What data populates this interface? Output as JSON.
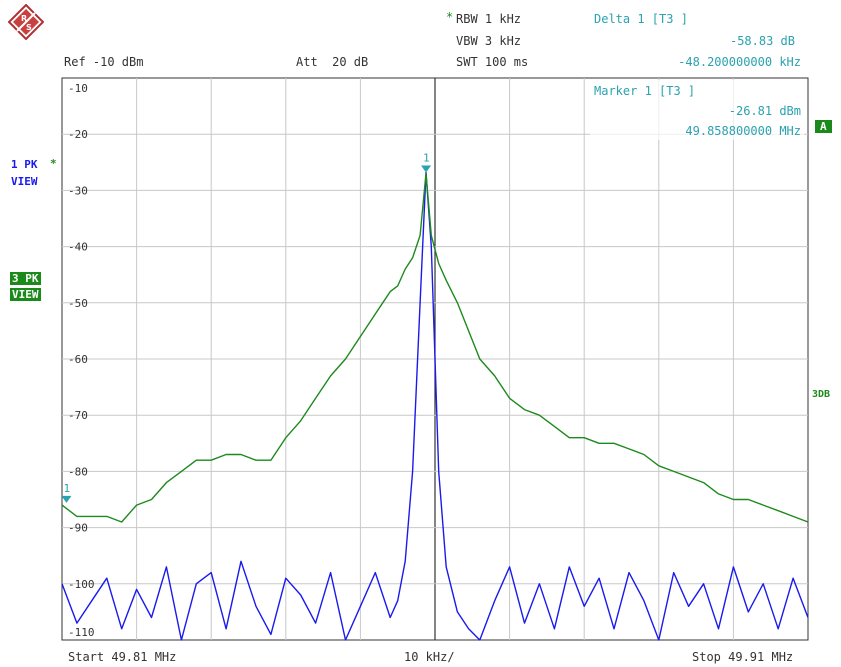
{
  "header": {
    "rbw_star": "*",
    "rbw": "RBW 1 kHz",
    "vbw": "VBW 3 kHz",
    "swt": "SWT 100 ms",
    "ref": "Ref -10 dBm",
    "att": "Att  20 dB",
    "delta_title": "Delta 1 [T3 ]",
    "delta_level": "-58.83 dB",
    "delta_freq": "-48.200000000 kHz"
  },
  "marker_box": {
    "title": "Marker 1 [T3 ]",
    "level": "-26.81 dBm",
    "freq": "49.858800000 MHz"
  },
  "side": {
    "trace1_label": "1 PK",
    "trace1_star": "*",
    "trace1_view": "VIEW",
    "trace3_label": "3 PK",
    "trace3_view": "VIEW",
    "badge_a": "A",
    "label_3db": "3DB"
  },
  "footer": {
    "start": "Start 49.81 MHz",
    "div": "10 kHz/",
    "stop": "Stop 49.91 MHz"
  },
  "colors": {
    "trace1": "#1a1aee",
    "trace3": "#1d8a1d",
    "marker": "#2aa2b0",
    "grid": "#c8c8c8"
  },
  "chart_data": {
    "type": "line",
    "xlabel_start": "Start 49.81 MHz",
    "xlabel_stop": "Stop 49.91 MHz",
    "x_div": "10 kHz/",
    "xlim": [
      49.81,
      49.91
    ],
    "ylim": [
      -110,
      -10
    ],
    "y_ticks": [
      -10,
      -20,
      -30,
      -40,
      -50,
      -60,
      -70,
      -80,
      -90,
      -100,
      -110
    ],
    "series": [
      {
        "name": "1 PK VIEW",
        "x": [
          49.81,
          49.812,
          49.814,
          49.816,
          49.818,
          49.82,
          49.822,
          49.824,
          49.826,
          49.828,
          49.83,
          49.832,
          49.834,
          49.836,
          49.838,
          49.84,
          49.842,
          49.844,
          49.846,
          49.848,
          49.85,
          49.852,
          49.854,
          49.855,
          49.856,
          49.857,
          49.858,
          49.8588,
          49.8595,
          49.8605,
          49.8615,
          49.863,
          49.8645,
          49.866,
          49.868,
          49.87,
          49.872,
          49.874,
          49.876,
          49.878,
          49.88,
          49.882,
          49.884,
          49.886,
          49.888,
          49.89,
          49.892,
          49.894,
          49.896,
          49.898,
          49.9,
          49.902,
          49.904,
          49.906,
          49.908,
          49.91
        ],
        "y": [
          -100,
          -107,
          -103,
          -99,
          -108,
          -101,
          -106,
          -97,
          -110,
          -100,
          -98,
          -108,
          -96,
          -104,
          -109,
          -99,
          -102,
          -107,
          -98,
          -110,
          -104,
          -98,
          -106,
          -103,
          -96,
          -80,
          -50,
          -26.8,
          -40,
          -80,
          -97,
          -105,
          -108,
          -110,
          -103,
          -97,
          -107,
          -100,
          -108,
          -97,
          -104,
          -99,
          -108,
          -98,
          -103,
          -110,
          -98,
          -104,
          -100,
          -108,
          -97,
          -105,
          -100,
          -108,
          -99,
          -106
        ]
      },
      {
        "name": "3 PK VIEW",
        "x": [
          49.81,
          49.812,
          49.814,
          49.816,
          49.818,
          49.82,
          49.822,
          49.824,
          49.826,
          49.828,
          49.83,
          49.832,
          49.834,
          49.836,
          49.838,
          49.84,
          49.842,
          49.844,
          49.846,
          49.848,
          49.85,
          49.852,
          49.854,
          49.855,
          49.856,
          49.857,
          49.858,
          49.8588,
          49.8595,
          49.8605,
          49.8615,
          49.863,
          49.8645,
          49.866,
          49.868,
          49.87,
          49.872,
          49.874,
          49.876,
          49.878,
          49.88,
          49.882,
          49.884,
          49.886,
          49.888,
          49.89,
          49.892,
          49.894,
          49.896,
          49.898,
          49.9,
          49.902,
          49.904,
          49.906,
          49.908,
          49.91
        ],
        "y": [
          -86,
          -88,
          -88,
          -88,
          -89,
          -86,
          -85,
          -82,
          -80,
          -78,
          -78,
          -77,
          -77,
          -78,
          -78,
          -74,
          -71,
          -67,
          -63,
          -60,
          -56,
          -52,
          -48,
          -47,
          -44,
          -42,
          -38,
          -27,
          -38,
          -43,
          -46,
          -50,
          -55,
          -60,
          -63,
          -67,
          -69,
          -70,
          -72,
          -74,
          -74,
          -75,
          -75,
          -76,
          -77,
          -79,
          -80,
          -81,
          -82,
          -84,
          -85,
          -85,
          -86,
          -87,
          -88,
          -89
        ]
      }
    ],
    "markers": [
      {
        "label": "1",
        "x": 49.8588,
        "y": -26.81
      },
      {
        "label": "1",
        "x": 49.8106,
        "y": -85.6
      }
    ]
  }
}
